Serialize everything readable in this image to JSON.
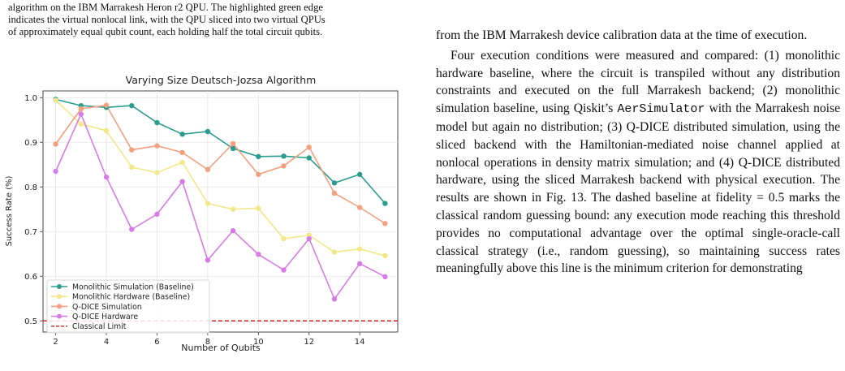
{
  "left_caption": {
    "lines": [
      "algorithm on the IBM Marrakesh Heron r2 QPU. The highlighted green edge",
      "indicates the virtual nonlocal link, with the QPU sliced into two virtual QPUs",
      "of approximately equal qubit count, each holding half the total circuit qubits."
    ]
  },
  "right_column": {
    "para1": "from the IBM Marrakesh device calibration data at the time of execution.",
    "para2_part1": "Four execution conditions were measured and compared: (1) monolithic hardware baseline, where the circuit is transpiled without any distribution constraints and executed on the full Marrakesh backend; (2) monolithic simulation baseline, using Qiskit’s ",
    "para2_code": "AerSimulator",
    "para2_part2": " with the Marrakesh noise model but again no distribution; (3) Q-DICE distributed simulation, using the sliced backend with the Hamiltonian-mediated noise channel applied at nonlocal operations in density matrix simulation; and (4) Q-DICE distributed hardware, using the sliced Marrakesh backend with physical execution. The results are shown in Fig. 13. The dashed baseline at fidelity = 0.5 marks the classical random guessing bound: any execution mode reaching this threshold provides no computational advantage over the optimal single-oracle-call classical strategy (i.e., random guessing), so maintaining success rates meaningfully above this line is the minimum criterion for demonstrating"
  },
  "chart_data": {
    "type": "line",
    "title": "Varying Size Deutsch-Jozsa Algorithm",
    "xlabel": "Number of Qubits",
    "ylabel": "Success Rate (%)",
    "xlim": [
      1.5,
      15.5
    ],
    "ylim": [
      0.475,
      1.015
    ],
    "xticks": [
      2,
      4,
      6,
      8,
      10,
      12,
      14
    ],
    "yticks": [
      0.5,
      0.6,
      0.7,
      0.8,
      0.9,
      1.0
    ],
    "ytick_labels": [
      "0.5",
      "0.6",
      "0.7",
      "0.8",
      "0.9",
      "1.0"
    ],
    "grid": true,
    "legend_position": "lower-left",
    "x": [
      2,
      3,
      4,
      5,
      6,
      7,
      8,
      9,
      10,
      11,
      12,
      13,
      14,
      15
    ],
    "series": [
      {
        "name": "Monolithic Simulation (Baseline)",
        "color": "#2a9d8f",
        "values": [
          0.996,
          0.982,
          0.978,
          0.982,
          0.944,
          0.918,
          0.924,
          0.886,
          0.868,
          0.869,
          0.865,
          0.809,
          0.828,
          0.763
        ]
      },
      {
        "name": "Monolithic Hardware (Baseline)",
        "color": "#f2e88a",
        "values": [
          0.994,
          0.941,
          0.926,
          0.844,
          0.832,
          0.855,
          0.763,
          0.75,
          0.752,
          0.684,
          0.692,
          0.654,
          0.661,
          0.646
        ]
      },
      {
        "name": "Q-DICE Simulation",
        "color": "#f4a07f",
        "values": [
          0.896,
          0.975,
          0.983,
          0.883,
          0.892,
          0.877,
          0.839,
          0.897,
          0.828,
          0.847,
          0.889,
          0.786,
          0.754,
          0.718
        ]
      },
      {
        "name": "Q-DICE Hardware",
        "color": "#d77be8",
        "values": [
          0.835,
          0.963,
          0.822,
          0.705,
          0.739,
          0.812,
          0.636,
          0.702,
          0.649,
          0.614,
          0.684,
          0.549,
          0.628,
          0.599
        ]
      }
    ],
    "reference_line": {
      "name": "Classical Limit",
      "y": 0.5,
      "color": "#dd1c1c",
      "style": "dashed"
    }
  }
}
